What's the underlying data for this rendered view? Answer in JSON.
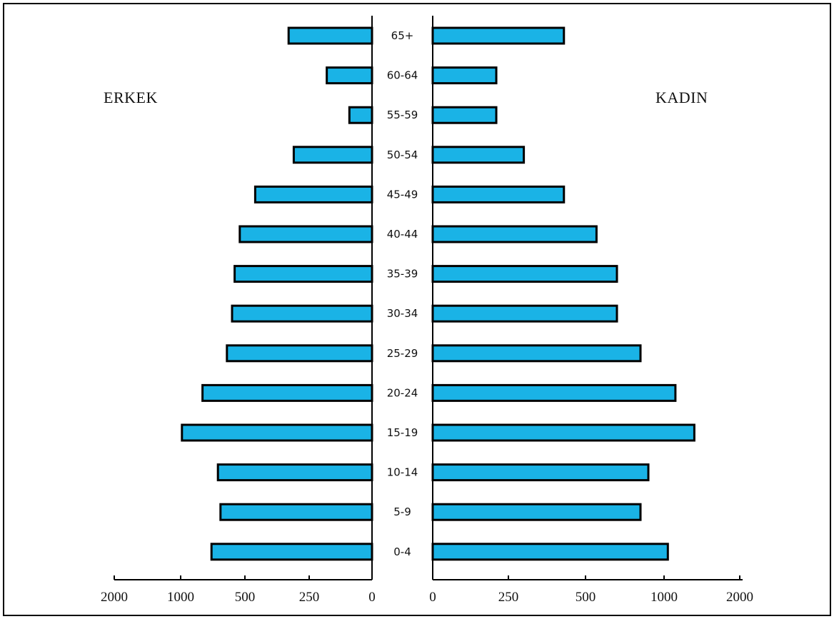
{
  "chart_data": {
    "type": "bar",
    "layout": "population-pyramid",
    "categories": [
      "65+",
      "60-64",
      "55-59",
      "50-54",
      "45-49",
      "40-44",
      "35-39",
      "30-34",
      "25-29",
      "20-24",
      "15-19",
      "10-14",
      "5-9",
      "0-4"
    ],
    "series": [
      {
        "name": "ERKEK",
        "values": [
          330,
          180,
          90,
          310,
          460,
          540,
          580,
          600,
          640,
          830,
          990,
          710,
          690,
          760
        ]
      },
      {
        "name": "KADIN",
        "values": [
          430,
          210,
          210,
          300,
          430,
          570,
          700,
          700,
          850,
          1150,
          1400,
          900,
          850,
          1050
        ]
      }
    ],
    "left_axis": {
      "tick_labels": [
        "2000",
        "1000",
        "500",
        "250",
        "0"
      ]
    },
    "right_axis": {
      "tick_labels": [
        "0",
        "250",
        "500",
        "1000",
        "2000"
      ]
    },
    "bar_color": "#1ab3e6",
    "grid": false
  }
}
